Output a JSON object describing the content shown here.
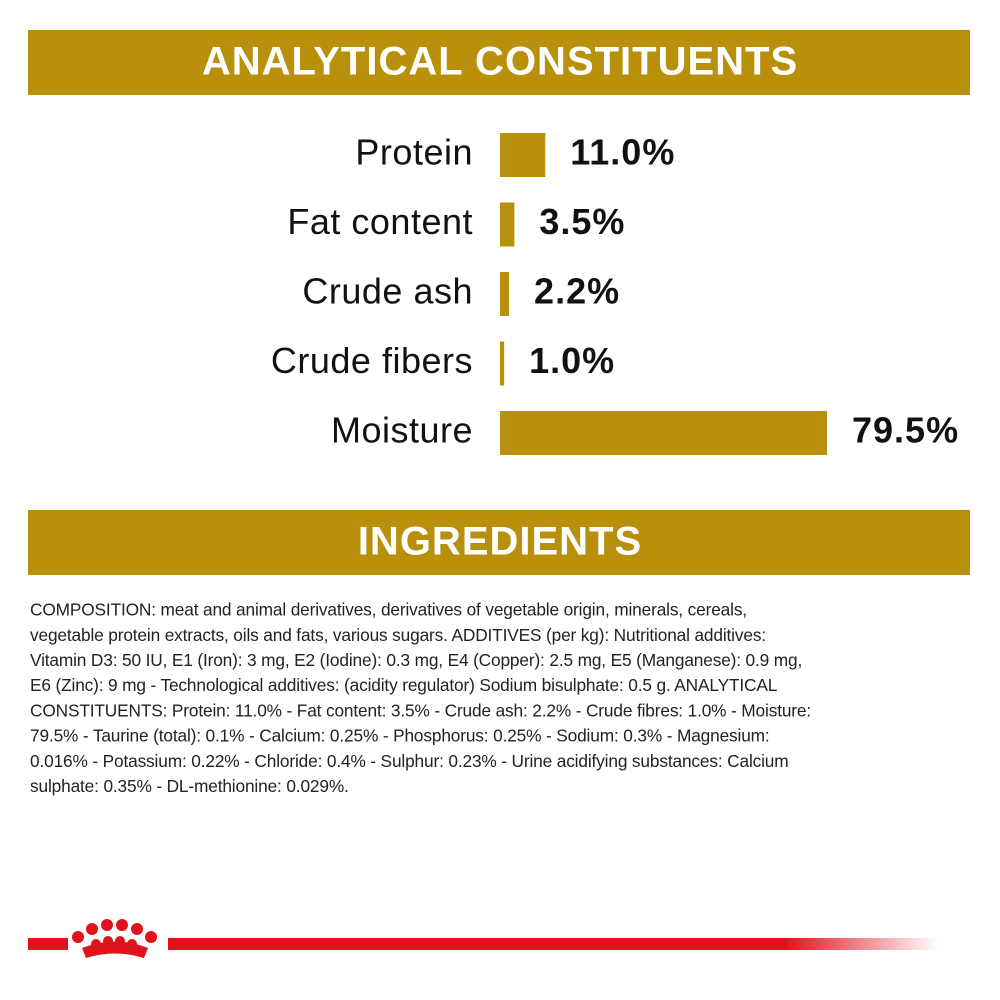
{
  "chart_data": {
    "type": "bar",
    "title": "ANALYTICAL CONSTITUENTS",
    "categories": [
      "Protein",
      "Fat content",
      "Crude ash",
      "Crude fibers",
      "Moisture"
    ],
    "values": [
      11.0,
      3.5,
      2.2,
      1.0,
      79.5
    ],
    "value_labels": [
      "11.0%",
      "3.5%",
      "2.2%",
      "1.0%",
      "79.5%"
    ],
    "color": "#b8900c",
    "orientation": "horizontal"
  },
  "ingredients": {
    "title": "INGREDIENTS",
    "lines": [
      "COMPOSITION: meat and animal derivatives, derivatives of vegetable origin, minerals, cereals,",
      "vegetable protein extracts, oils and fats, various sugars. ADDITIVES (per kg): Nutritional additives:",
      "Vitamin D3: 50 IU, E1 (Iron): 3 mg, E2 (Iodine): 0.3 mg, E4 (Copper): 2.5 mg, E5 (Manganese): 0.9 mg,",
      "E6 (Zinc): 9 mg - Technological additives: (acidity regulator) Sodium bisulphate: 0.5 g. ANALYTICAL",
      "CONSTITUENTS: Protein: 11.0% - Fat content: 3.5% - Crude ash: 2.2% - Crude fibres: 1.0% - Moisture:",
      "79.5% - Taurine (total): 0.1% - Calcium: 0.25% - Phosphorus: 0.25% - Sodium: 0.3% - Magnesium:",
      "0.016% - Potassium: 0.22% - Chloride: 0.4% - Sulphur: 0.23% - Urine acidifying substances: Calcium",
      "sulphate: 0.35% - DL-methionine: 0.029%."
    ]
  }
}
